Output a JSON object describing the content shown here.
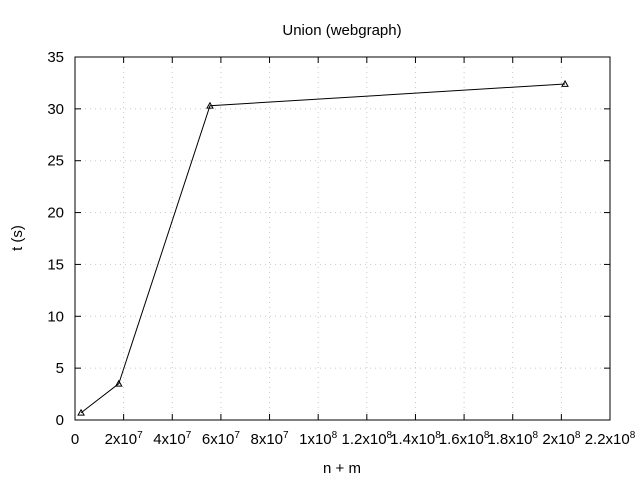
{
  "chart_data": {
    "type": "line",
    "title": "Union (webgraph)",
    "xlabel": "n + m",
    "ylabel": "t (s)",
    "xlim": [
      0,
      220000000
    ],
    "ylim": [
      0,
      35
    ],
    "x_ticks": [
      0,
      20000000,
      40000000,
      60000000,
      80000000,
      100000000,
      120000000,
      140000000,
      160000000,
      180000000,
      200000000,
      220000000
    ],
    "x_tick_labels": [
      {
        "base": "0",
        "exp": ""
      },
      {
        "base": "2x10",
        "exp": "7"
      },
      {
        "base": "4x10",
        "exp": "7"
      },
      {
        "base": "6x10",
        "exp": "7"
      },
      {
        "base": "8x10",
        "exp": "7"
      },
      {
        "base": "1x10",
        "exp": "8"
      },
      {
        "base": "1.2x10",
        "exp": "8"
      },
      {
        "base": "1.4x10",
        "exp": "8"
      },
      {
        "base": "1.6x10",
        "exp": "8"
      },
      {
        "base": "1.8x10",
        "exp": "8"
      },
      {
        "base": "2x10",
        "exp": "8"
      },
      {
        "base": "2.2x10",
        "exp": "8"
      }
    ],
    "y_ticks": [
      0,
      5,
      10,
      15,
      20,
      25,
      30,
      35
    ],
    "y_tick_labels": [
      "0",
      "5",
      "10",
      "15",
      "20",
      "25",
      "30",
      "35"
    ],
    "grid": true,
    "marker": "triangle",
    "series": [
      {
        "color": "#000000",
        "x": [
          2500000,
          18000000,
          55500000,
          201500000
        ],
        "y": [
          0.7,
          3.5,
          30.3,
          32.4
        ]
      }
    ]
  }
}
